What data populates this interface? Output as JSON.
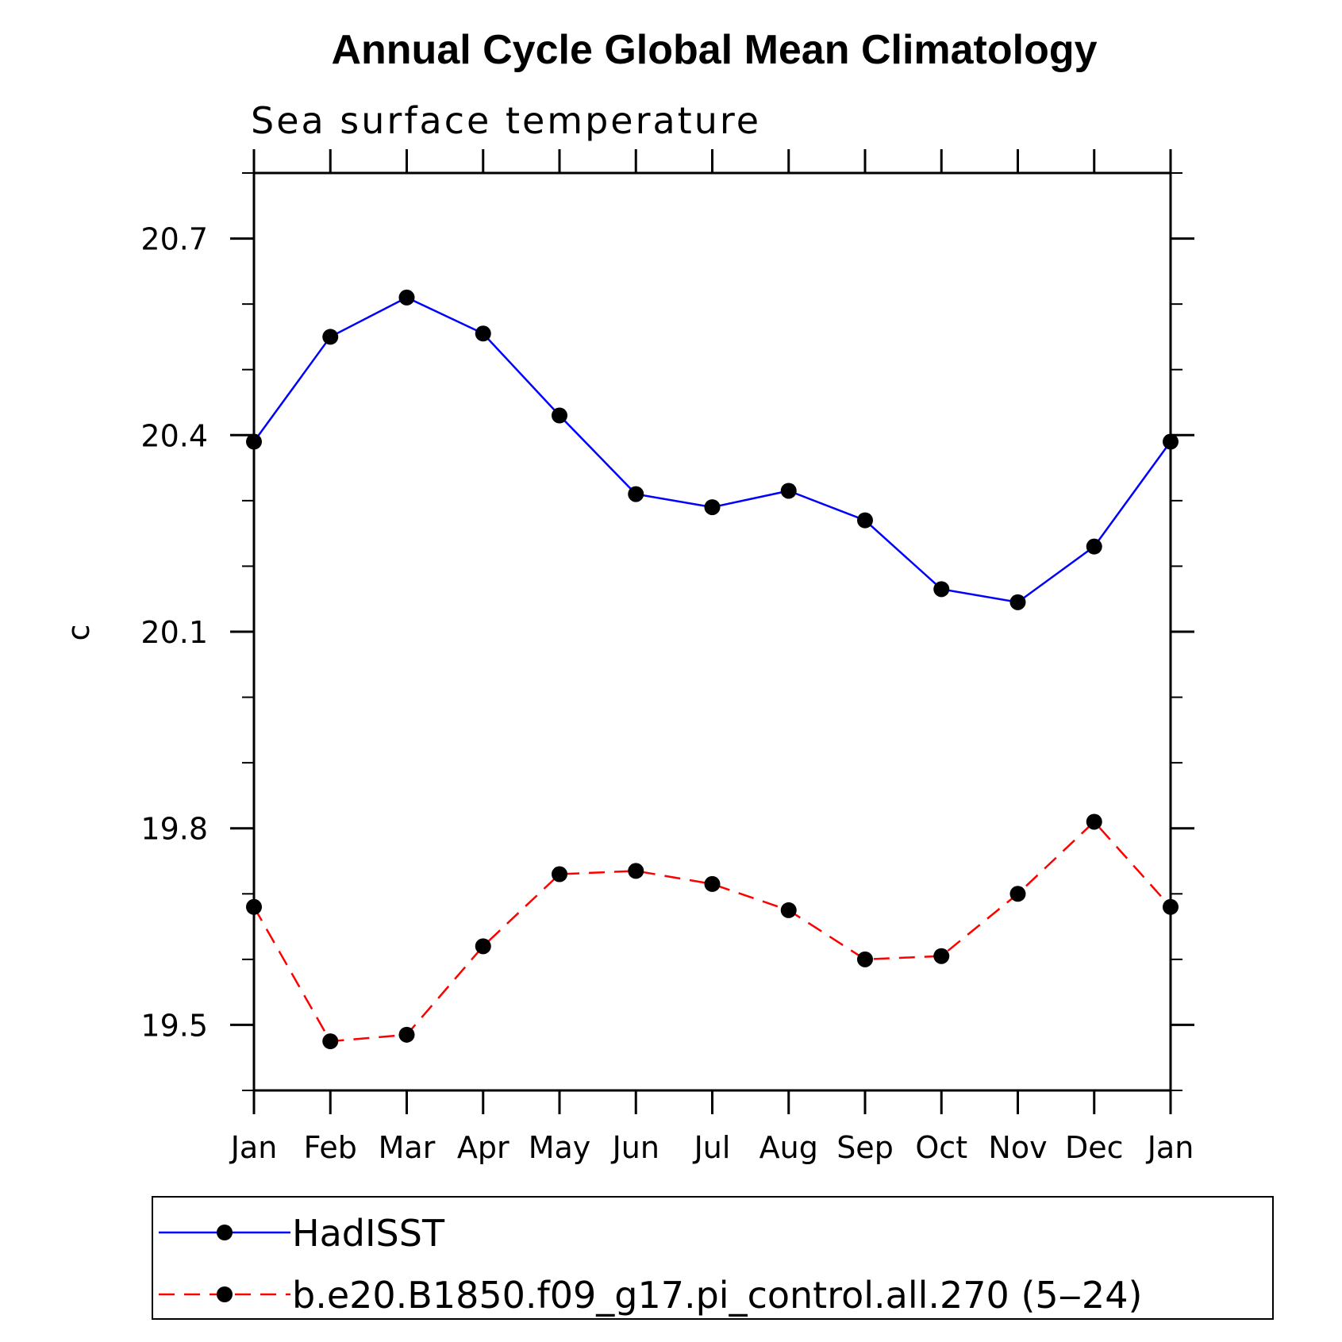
{
  "chart_data": {
    "type": "line",
    "title": "Annual Cycle Global Mean Climatology",
    "subtitle": "Sea surface temperature",
    "ylabel": "c",
    "xlabel": "",
    "categories": [
      "Jan",
      "Feb",
      "Mar",
      "Apr",
      "May",
      "Jun",
      "Jul",
      "Aug",
      "Sep",
      "Oct",
      "Nov",
      "Dec",
      "Jan"
    ],
    "ylim": [
      19.4,
      20.8
    ],
    "yticks": [
      19.5,
      19.8,
      20.1,
      20.4,
      20.7
    ],
    "ytick_labels": [
      "19.5",
      "19.8",
      "20.1",
      "20.4",
      "20.7"
    ],
    "legend_position": "bottom",
    "series": [
      {
        "name": "HadISST",
        "color": "#0000ff",
        "style": "solid",
        "marker": "circle",
        "values": [
          20.39,
          20.55,
          20.61,
          20.555,
          20.43,
          20.31,
          20.29,
          20.315,
          20.27,
          20.165,
          20.145,
          20.23,
          20.39
        ]
      },
      {
        "name": "b.e20.B1850.f09_g17.pi_control.all.270 (5‒24)",
        "color": "#ff0000",
        "style": "dashed",
        "marker": "circle",
        "values": [
          19.68,
          19.475,
          19.485,
          19.62,
          19.73,
          19.735,
          19.715,
          19.675,
          19.6,
          19.605,
          19.7,
          19.81,
          19.68
        ]
      }
    ]
  }
}
